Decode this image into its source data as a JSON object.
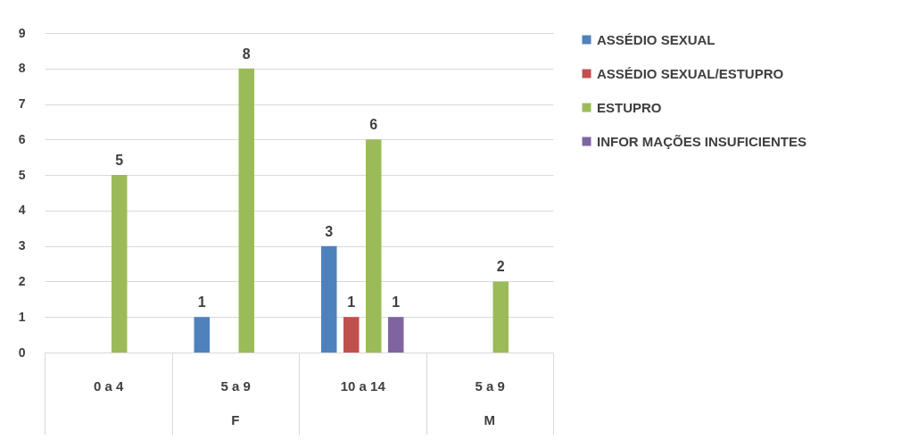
{
  "chart_data": {
    "type": "bar",
    "categories": [
      "0 a 4",
      "5 a 9",
      "10 a 14",
      "5 a 9"
    ],
    "series": [
      {
        "name": "ASSÉDIO SEXUAL",
        "color": "#4f81bd",
        "values": [
          null,
          1,
          3,
          null
        ]
      },
      {
        "name": "ASSÉDIO SEXUAL/ESTUPRO",
        "color": "#c0504d",
        "values": [
          null,
          null,
          1,
          null
        ]
      },
      {
        "name": "ESTUPRO",
        "color": "#9bbb59",
        "values": [
          5,
          8,
          6,
          2
        ]
      },
      {
        "name": "INFOR MAÇÕES INSUFICIENTES",
        "color": "#8064a2",
        "values": [
          null,
          null,
          1,
          null
        ]
      }
    ],
    "annotations": [
      "F",
      "M"
    ],
    "ylim": [
      0,
      9
    ],
    "yticks": [
      0,
      1,
      2,
      3,
      4,
      5,
      6,
      7,
      8,
      9
    ],
    "grid": "y",
    "legend": "right",
    "data_labels": true
  }
}
